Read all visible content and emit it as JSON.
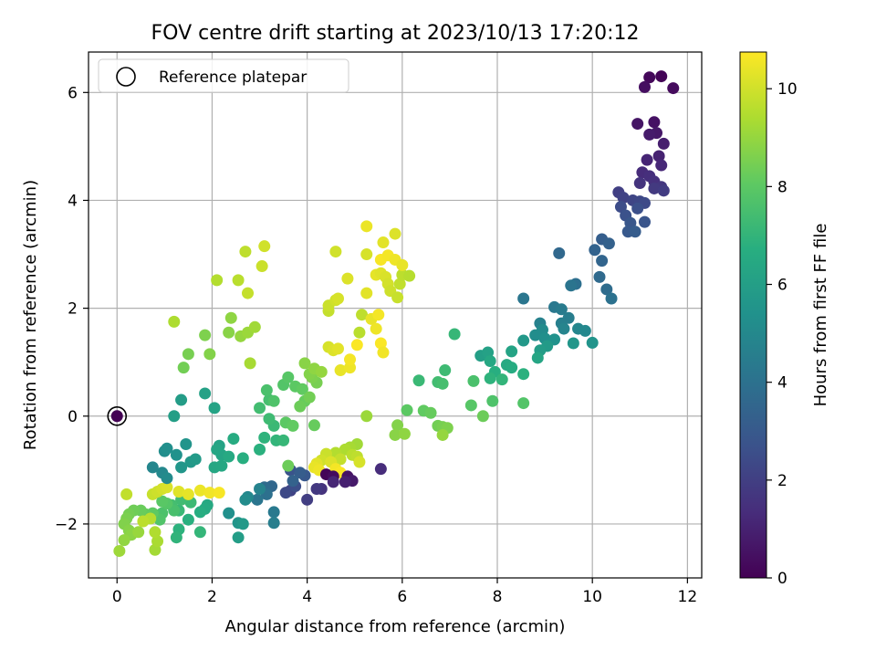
{
  "chart_data": {
    "type": "scatter",
    "title": "FOV centre drift starting at 2023/10/13 17:20:12",
    "xlabel": "Angular distance from reference (arcmin)",
    "ylabel": "Rotation from reference (arcmin)",
    "xlim": [
      -0.6,
      12.3
    ],
    "ylim": [
      -3.0,
      6.75
    ],
    "xticks": [
      0,
      2,
      4,
      6,
      8,
      10,
      12
    ],
    "yticks": [
      -2,
      0,
      2,
      4,
      6
    ],
    "grid": true,
    "legend": {
      "position": "top-left",
      "entries": [
        "Reference platepar"
      ]
    },
    "reference_point": {
      "x": 0,
      "y": 0
    },
    "colorbar": {
      "label": "Hours from first FF file",
      "colormap": "viridis",
      "range": [
        0,
        10.75
      ],
      "ticks": [
        0,
        2,
        4,
        6,
        8,
        10
      ]
    },
    "points": [
      [
        11.45,
        6.3,
        0.1
      ],
      [
        11.2,
        6.28,
        0.2
      ],
      [
        11.7,
        6.08,
        0.3
      ],
      [
        11.1,
        6.1,
        0.4
      ],
      [
        11.3,
        5.45,
        0.5
      ],
      [
        10.95,
        5.42,
        0.6
      ],
      [
        11.35,
        5.25,
        0.7
      ],
      [
        11.2,
        5.22,
        0.8
      ],
      [
        11.5,
        5.05,
        0.9
      ],
      [
        11.4,
        4.82,
        1.0
      ],
      [
        11.15,
        4.75,
        1.1
      ],
      [
        11.45,
        4.65,
        1.2
      ],
      [
        11.05,
        4.52,
        1.3
      ],
      [
        11.2,
        4.45,
        1.4
      ],
      [
        11.3,
        4.35,
        1.5
      ],
      [
        11.0,
        4.32,
        1.6
      ],
      [
        11.45,
        4.25,
        1.7
      ],
      [
        11.3,
        4.22,
        1.8
      ],
      [
        11.5,
        4.18,
        1.9
      ],
      [
        10.55,
        4.15,
        2.0
      ],
      [
        10.65,
        4.05,
        2.1
      ],
      [
        10.85,
        4.0,
        2.2
      ],
      [
        11.0,
        3.98,
        2.3
      ],
      [
        11.1,
        3.95,
        2.4
      ],
      [
        10.6,
        3.88,
        2.5
      ],
      [
        10.95,
        3.85,
        2.6
      ],
      [
        10.7,
        3.72,
        2.7
      ],
      [
        11.1,
        3.6,
        2.8
      ],
      [
        10.8,
        3.58,
        2.9
      ],
      [
        10.75,
        3.42,
        3.0
      ],
      [
        10.9,
        3.42,
        3.1
      ],
      [
        10.2,
        3.28,
        3.2
      ],
      [
        10.35,
        3.2,
        3.3
      ],
      [
        10.05,
        3.08,
        3.4
      ],
      [
        10.2,
        2.88,
        3.5
      ],
      [
        9.3,
        3.02,
        3.6
      ],
      [
        10.15,
        2.58,
        3.7
      ],
      [
        10.3,
        2.35,
        3.8
      ],
      [
        9.65,
        2.45,
        3.9
      ],
      [
        10.4,
        2.18,
        4.0
      ],
      [
        9.55,
        2.42,
        4.1
      ],
      [
        8.55,
        2.18,
        4.2
      ],
      [
        9.2,
        2.02,
        4.3
      ],
      [
        9.35,
        1.98,
        4.4
      ],
      [
        9.5,
        1.82,
        4.5
      ],
      [
        9.35,
        1.72,
        4.6
      ],
      [
        8.9,
        1.72,
        4.7
      ],
      [
        9.4,
        1.62,
        4.8
      ],
      [
        9.7,
        1.62,
        4.9
      ],
      [
        9.85,
        1.58,
        5.0
      ],
      [
        8.95,
        1.6,
        5.1
      ],
      [
        8.8,
        1.5,
        5.2
      ],
      [
        9.0,
        1.44,
        5.3
      ],
      [
        9.2,
        1.42,
        5.4
      ],
      [
        10.0,
        1.36,
        5.5
      ],
      [
        9.6,
        1.35,
        5.6
      ],
      [
        8.55,
        1.4,
        5.7
      ],
      [
        9.05,
        1.3,
        5.8
      ],
      [
        8.9,
        1.22,
        5.9
      ],
      [
        7.65,
        1.12,
        6.0
      ],
      [
        7.8,
        1.18,
        6.1
      ],
      [
        8.3,
        1.2,
        6.2
      ],
      [
        8.85,
        1.08,
        6.3
      ],
      [
        7.85,
        1.02,
        6.4
      ],
      [
        8.2,
        0.95,
        6.5
      ],
      [
        8.3,
        0.9,
        6.6
      ],
      [
        7.95,
        0.82,
        6.7
      ],
      [
        8.55,
        0.78,
        6.8
      ],
      [
        7.85,
        0.7,
        6.9
      ],
      [
        8.1,
        0.68,
        7.0
      ],
      [
        7.1,
        1.52,
        7.1
      ],
      [
        6.35,
        0.66,
        7.2
      ],
      [
        6.9,
        0.85,
        7.3
      ],
      [
        6.75,
        0.63,
        7.4
      ],
      [
        6.85,
        0.6,
        7.5
      ],
      [
        7.5,
        0.65,
        7.6
      ],
      [
        7.9,
        0.28,
        7.7
      ],
      [
        8.55,
        0.24,
        7.8
      ],
      [
        7.45,
        0.2,
        7.9
      ],
      [
        6.1,
        0.11,
        8.0
      ],
      [
        6.45,
        0.1,
        8.1
      ],
      [
        6.6,
        0.06,
        8.2
      ],
      [
        7.7,
        0.0,
        8.3
      ],
      [
        6.75,
        -0.18,
        8.4
      ],
      [
        6.85,
        -0.2,
        8.5
      ],
      [
        6.95,
        -0.22,
        8.6
      ],
      [
        5.9,
        -0.17,
        8.7
      ],
      [
        5.85,
        -0.35,
        8.8
      ],
      [
        6.05,
        -0.33,
        8.9
      ],
      [
        6.85,
        -0.35,
        9.0
      ],
      [
        5.25,
        0.0,
        9.1
      ],
      [
        5.05,
        -0.52,
        9.2
      ],
      [
        4.9,
        -0.58,
        9.3
      ],
      [
        4.8,
        -0.62,
        9.4
      ],
      [
        4.6,
        -0.68,
        9.5
      ],
      [
        4.95,
        -0.72,
        9.6
      ],
      [
        5.05,
        -0.75,
        9.7
      ],
      [
        4.7,
        -0.8,
        9.8
      ],
      [
        4.4,
        -0.7,
        9.9
      ],
      [
        4.3,
        -0.82,
        10.0
      ],
      [
        5.1,
        -0.85,
        10.1
      ],
      [
        4.5,
        -0.85,
        10.2
      ],
      [
        4.2,
        -0.88,
        10.3
      ],
      [
        4.15,
        -0.95,
        10.4
      ],
      [
        4.25,
        -1.0,
        10.5
      ],
      [
        4.6,
        -0.98,
        10.6
      ],
      [
        4.7,
        -1.05,
        10.7
      ],
      [
        4.4,
        -1.08,
        0.15
      ],
      [
        4.55,
        -1.12,
        0.35
      ],
      [
        4.85,
        -1.12,
        0.55
      ],
      [
        4.95,
        -1.2,
        0.75
      ],
      [
        4.8,
        -1.22,
        0.95
      ],
      [
        4.55,
        -1.22,
        1.15
      ],
      [
        5.55,
        -0.98,
        1.35
      ],
      [
        4.3,
        -1.35,
        1.55
      ],
      [
        4.2,
        -1.35,
        1.75
      ],
      [
        4.0,
        -1.55,
        1.95
      ],
      [
        3.65,
        -1.38,
        2.15
      ],
      [
        3.55,
        -1.42,
        2.35
      ],
      [
        3.75,
        -1.3,
        2.55
      ],
      [
        3.65,
        -1.0,
        2.75
      ],
      [
        3.95,
        -1.1,
        2.95
      ],
      [
        3.85,
        -1.05,
        3.15
      ],
      [
        3.7,
        -1.2,
        3.35
      ],
      [
        3.25,
        -1.3,
        3.55
      ],
      [
        3.1,
        -1.32,
        3.75
      ],
      [
        3.15,
        -1.45,
        3.95
      ],
      [
        2.95,
        -1.55,
        4.15
      ],
      [
        3.3,
        -1.78,
        4.35
      ],
      [
        3.3,
        -1.98,
        4.55
      ],
      [
        3.0,
        -1.35,
        4.75
      ],
      [
        2.75,
        -1.5,
        4.95
      ],
      [
        2.7,
        -1.55,
        5.15
      ],
      [
        2.35,
        -1.8,
        5.35
      ],
      [
        2.55,
        -1.98,
        5.55
      ],
      [
        2.65,
        -2.0,
        5.75
      ],
      [
        2.55,
        -2.25,
        5.95
      ],
      [
        2.15,
        -0.55,
        6.15
      ],
      [
        2.2,
        -0.72,
        6.25
      ],
      [
        2.05,
        -0.95,
        6.35
      ],
      [
        1.9,
        -1.65,
        6.45
      ],
      [
        1.85,
        -1.72,
        6.55
      ],
      [
        1.75,
        -1.78,
        6.65
      ],
      [
        1.5,
        -1.92,
        6.75
      ],
      [
        1.3,
        -2.1,
        6.85
      ],
      [
        1.25,
        -2.25,
        6.95
      ],
      [
        1.75,
        -2.15,
        7.05
      ],
      [
        1.3,
        -1.75,
        7.15
      ],
      [
        1.55,
        -1.6,
        7.25
      ],
      [
        1.35,
        -1.55,
        7.35
      ],
      [
        1.15,
        -1.65,
        7.45
      ],
      [
        1.2,
        -1.75,
        7.55
      ],
      [
        0.95,
        -1.8,
        7.65
      ],
      [
        0.9,
        -1.92,
        7.75
      ],
      [
        1.05,
        -1.62,
        7.85
      ],
      [
        0.95,
        -1.58,
        7.95
      ],
      [
        0.75,
        -1.8,
        8.05
      ],
      [
        0.6,
        -1.82,
        8.15
      ],
      [
        0.5,
        -1.75,
        8.25
      ],
      [
        0.35,
        -1.75,
        8.35
      ],
      [
        0.25,
        -1.82,
        8.45
      ],
      [
        0.2,
        -1.9,
        8.55
      ],
      [
        0.15,
        -2.0,
        8.65
      ],
      [
        0.25,
        -2.12,
        8.75
      ],
      [
        0.3,
        -2.2,
        8.85
      ],
      [
        0.15,
        -2.3,
        8.95
      ],
      [
        0.45,
        -2.15,
        9.05
      ],
      [
        0.05,
        -2.5,
        9.15
      ],
      [
        0.8,
        -2.48,
        9.25
      ],
      [
        0.85,
        -2.32,
        9.35
      ],
      [
        0.8,
        -2.15,
        9.45
      ],
      [
        0.7,
        -1.9,
        9.55
      ],
      [
        0.55,
        -1.95,
        9.65
      ],
      [
        0.2,
        -1.45,
        9.75
      ],
      [
        0.75,
        -1.45,
        9.85
      ],
      [
        0.85,
        -1.4,
        9.95
      ],
      [
        0.95,
        -1.35,
        10.05
      ],
      [
        1.05,
        -1.32,
        10.15
      ],
      [
        1.3,
        -1.4,
        10.25
      ],
      [
        1.5,
        -1.45,
        10.35
      ],
      [
        1.75,
        -1.38,
        10.45
      ],
      [
        1.95,
        -1.42,
        10.55
      ],
      [
        2.15,
        -1.42,
        10.65
      ],
      [
        0.75,
        -0.95,
        4.9
      ],
      [
        0.95,
        -1.05,
        5.0
      ],
      [
        1.05,
        -1.15,
        5.1
      ],
      [
        1.0,
        -0.65,
        5.2
      ],
      [
        1.05,
        -0.6,
        5.3
      ],
      [
        1.25,
        -0.72,
        5.4
      ],
      [
        1.45,
        -0.52,
        5.5
      ],
      [
        1.35,
        -0.95,
        5.6
      ],
      [
        1.55,
        -0.85,
        5.7
      ],
      [
        1.65,
        -0.8,
        5.8
      ],
      [
        1.35,
        0.3,
        5.9
      ],
      [
        1.2,
        0.0,
        6.0
      ],
      [
        1.85,
        0.42,
        6.1
      ],
      [
        2.05,
        0.15,
        6.2
      ],
      [
        2.1,
        -0.62,
        6.3
      ],
      [
        2.2,
        -0.92,
        6.4
      ],
      [
        2.35,
        -0.75,
        6.5
      ],
      [
        2.45,
        -0.42,
        6.6
      ],
      [
        2.65,
        -0.78,
        6.7
      ],
      [
        3.0,
        -0.62,
        6.8
      ],
      [
        3.1,
        -0.4,
        6.9
      ],
      [
        3.35,
        -0.45,
        7.0
      ],
      [
        3.5,
        -0.45,
        7.1
      ],
      [
        3.3,
        -0.18,
        7.2
      ],
      [
        3.2,
        -0.05,
        7.3
      ],
      [
        3.0,
        0.15,
        7.4
      ],
      [
        3.2,
        0.3,
        7.5
      ],
      [
        3.15,
        0.48,
        7.6
      ],
      [
        3.3,
        0.28,
        7.7
      ],
      [
        3.5,
        0.58,
        7.8
      ],
      [
        3.6,
        0.72,
        7.9
      ],
      [
        3.75,
        0.55,
        8.0
      ],
      [
        3.9,
        0.5,
        8.1
      ],
      [
        3.95,
        0.28,
        8.2
      ],
      [
        3.85,
        0.18,
        8.3
      ],
      [
        4.05,
        0.35,
        8.4
      ],
      [
        4.2,
        0.62,
        8.5
      ],
      [
        4.1,
        0.72,
        8.6
      ],
      [
        4.05,
        0.78,
        8.7
      ],
      [
        3.95,
        0.98,
        8.8
      ],
      [
        4.15,
        0.88,
        8.9
      ],
      [
        4.3,
        0.82,
        9.0
      ],
      [
        3.55,
        -0.12,
        8.0
      ],
      [
        3.7,
        -0.18,
        8.1
      ],
      [
        4.15,
        -0.17,
        8.2
      ],
      [
        3.6,
        -0.92,
        8.3
      ],
      [
        1.4,
        0.9,
        8.4
      ],
      [
        1.5,
        1.15,
        8.5
      ],
      [
        1.85,
        1.5,
        8.6
      ],
      [
        1.95,
        1.15,
        8.7
      ],
      [
        2.35,
        1.55,
        8.8
      ],
      [
        2.4,
        1.82,
        8.9
      ],
      [
        2.6,
        1.48,
        9.0
      ],
      [
        2.75,
        1.55,
        9.1
      ],
      [
        2.9,
        1.65,
        9.2
      ],
      [
        2.8,
        0.98,
        9.3
      ],
      [
        1.2,
        1.75,
        9.4
      ],
      [
        2.1,
        2.52,
        9.5
      ],
      [
        2.55,
        2.52,
        9.6
      ],
      [
        2.7,
        3.05,
        9.7
      ],
      [
        2.75,
        2.28,
        9.8
      ],
      [
        3.05,
        2.78,
        9.9
      ],
      [
        3.1,
        3.15,
        10.0
      ],
      [
        4.45,
        1.28,
        10.1
      ],
      [
        4.55,
        1.22,
        10.2
      ],
      [
        4.65,
        1.25,
        10.3
      ],
      [
        4.7,
        0.85,
        10.4
      ],
      [
        4.9,
        0.9,
        10.5
      ],
      [
        4.9,
        1.05,
        10.6
      ],
      [
        5.05,
        1.32,
        10.7
      ],
      [
        5.1,
        1.55,
        9.6
      ],
      [
        5.15,
        1.88,
        9.7
      ],
      [
        4.45,
        1.95,
        9.8
      ],
      [
        4.45,
        2.05,
        9.9
      ],
      [
        4.6,
        2.15,
        10.0
      ],
      [
        4.65,
        2.18,
        10.1
      ],
      [
        4.85,
        2.55,
        10.2
      ],
      [
        5.25,
        2.28,
        10.3
      ],
      [
        5.35,
        1.8,
        10.4
      ],
      [
        5.45,
        1.62,
        10.5
      ],
      [
        5.5,
        1.88,
        10.6
      ],
      [
        5.55,
        1.35,
        10.7
      ],
      [
        5.6,
        1.18,
        10.55
      ],
      [
        5.25,
        3.52,
        10.45
      ],
      [
        5.45,
        2.62,
        10.35
      ],
      [
        5.55,
        2.65,
        10.25
      ],
      [
        5.65,
        2.58,
        10.15
      ],
      [
        5.7,
        2.45,
        10.05
      ],
      [
        5.75,
        2.32,
        9.95
      ],
      [
        5.9,
        2.2,
        9.85
      ],
      [
        5.95,
        2.45,
        9.75
      ],
      [
        6.0,
        2.62,
        9.65
      ],
      [
        6.15,
        2.6,
        9.55
      ],
      [
        5.55,
        2.9,
        10.65
      ],
      [
        5.7,
        2.98,
        10.6
      ],
      [
        5.85,
        2.9,
        10.5
      ],
      [
        6.0,
        2.8,
        10.4
      ],
      [
        5.6,
        3.22,
        10.3
      ],
      [
        5.85,
        3.38,
        10.2
      ],
      [
        5.25,
        3.0,
        10.1
      ],
      [
        4.6,
        3.05,
        10.0
      ]
    ]
  }
}
